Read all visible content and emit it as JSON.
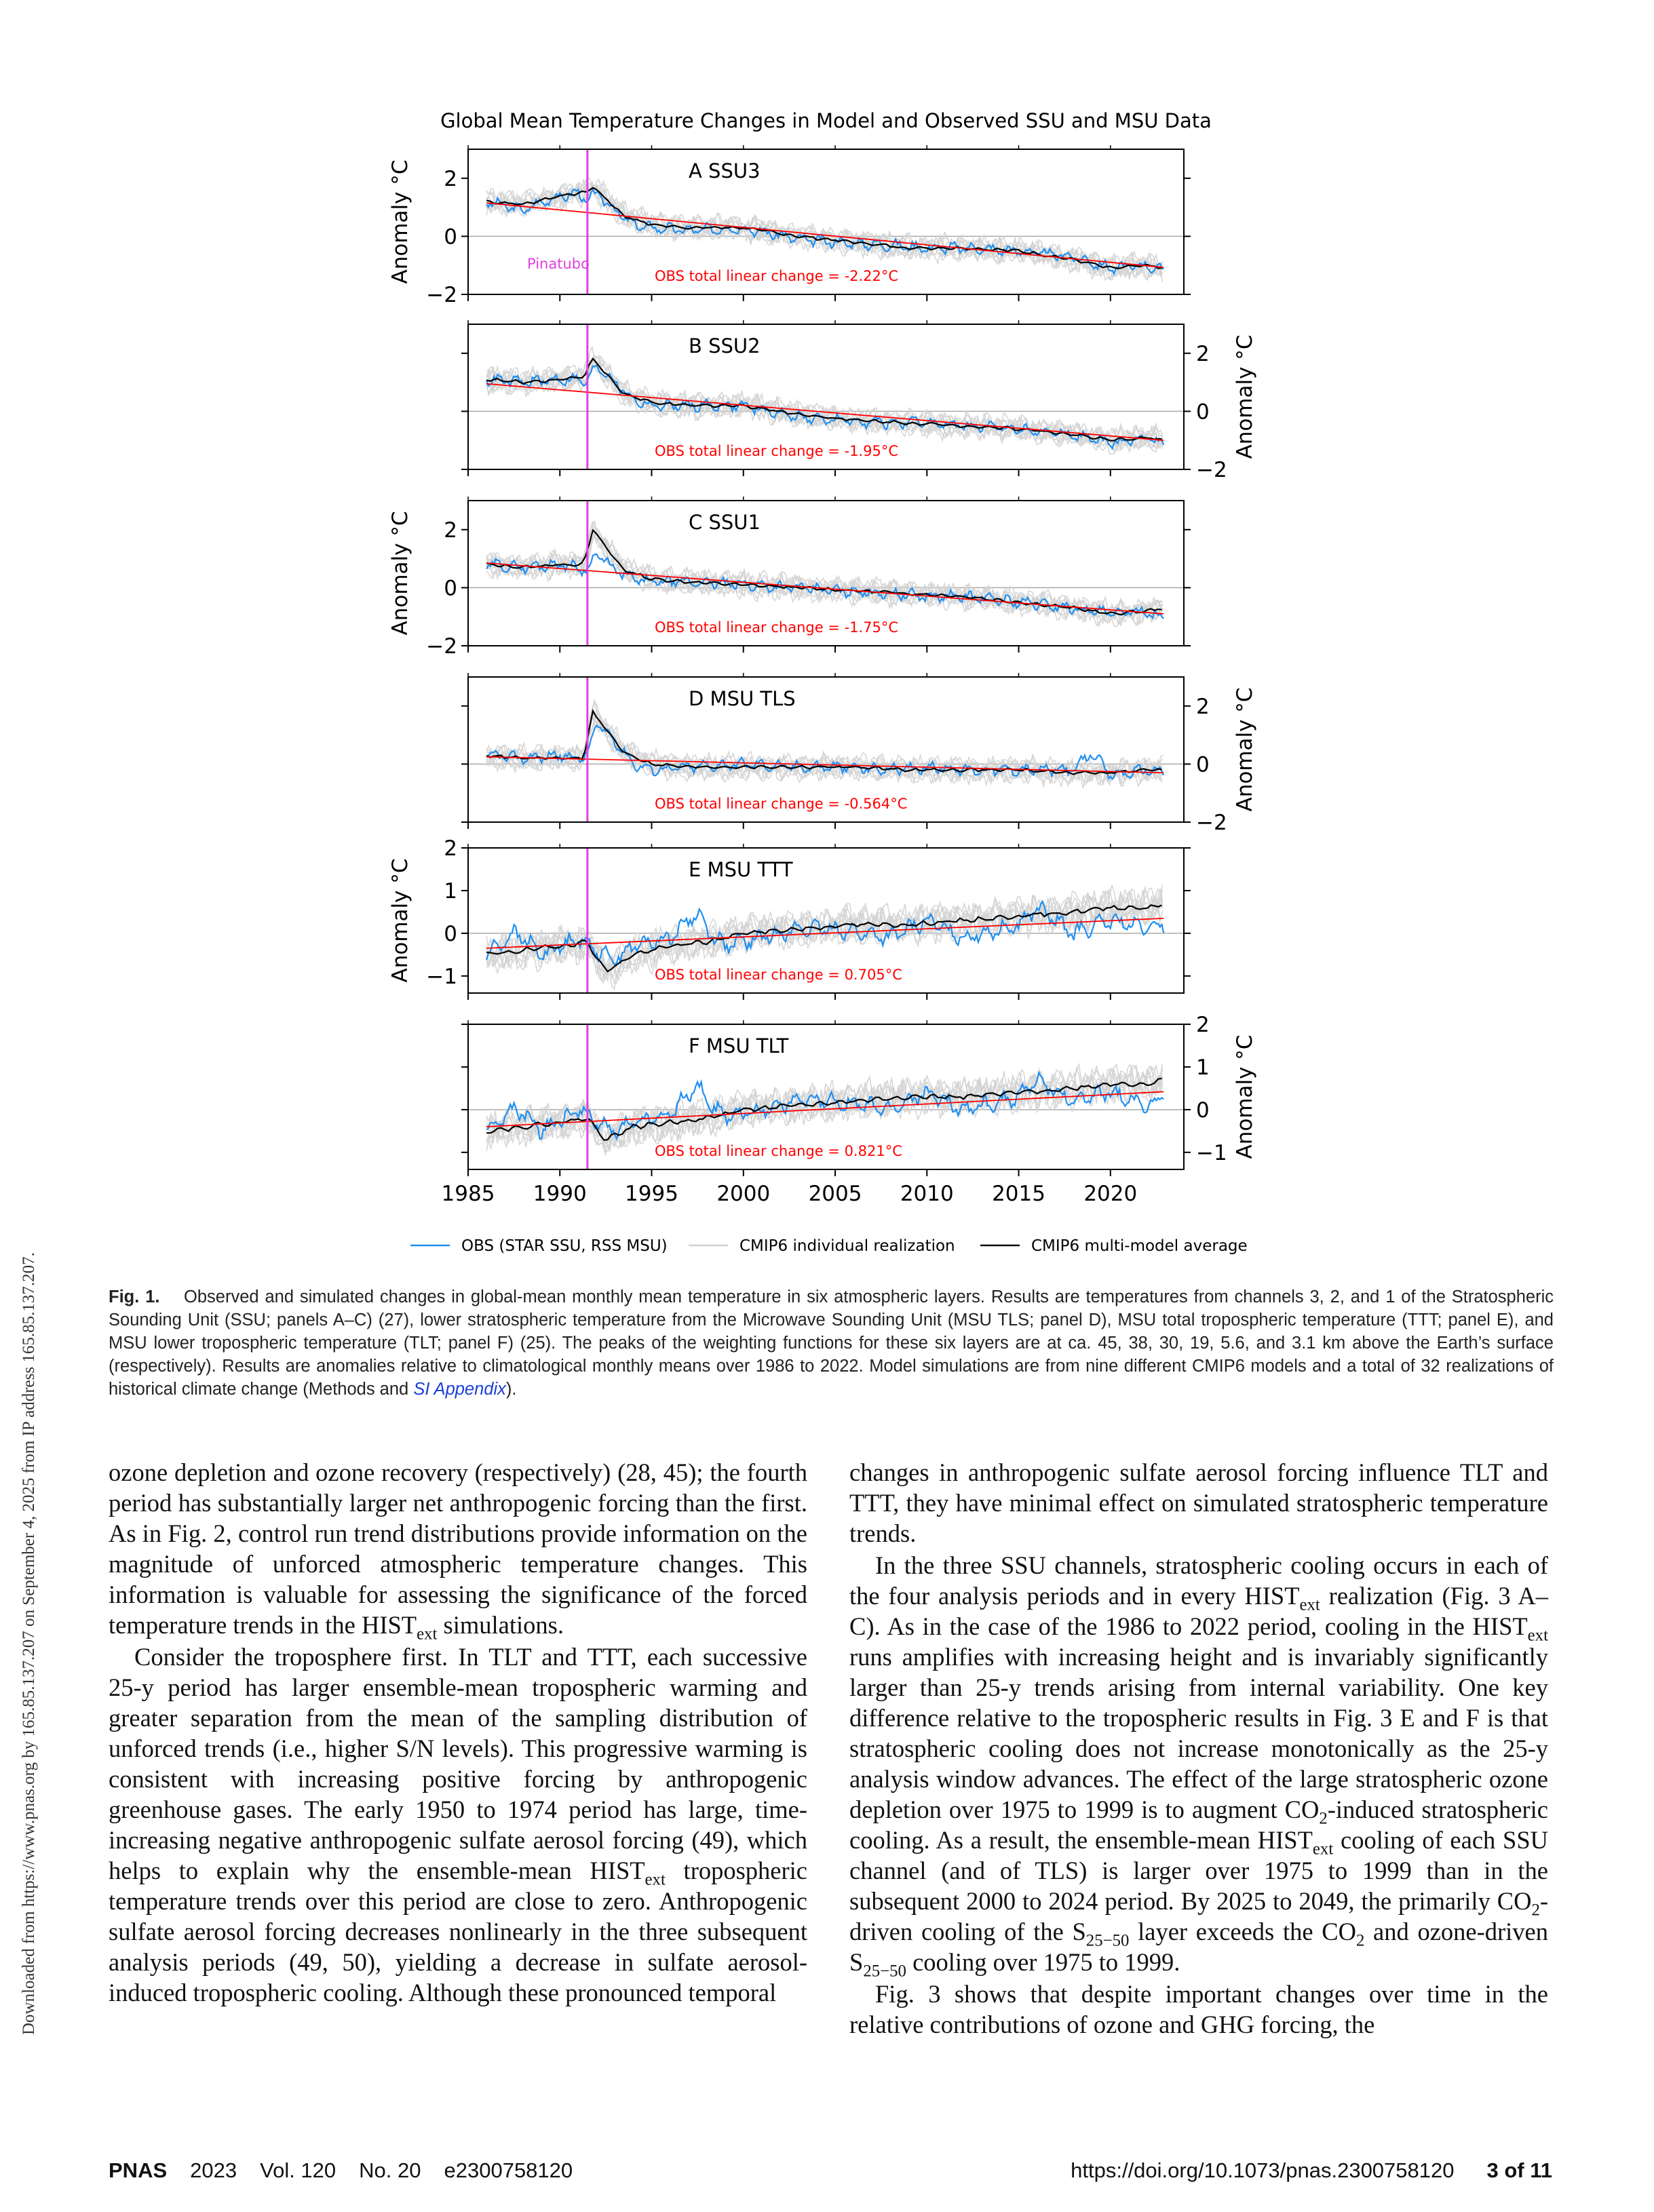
{
  "side_note": "Downloaded from https://www.pnas.org by 165.85.137.207 on September 4, 2025 from IP address 165.85.137.207.",
  "figure": {
    "title": "Global Mean Temperature Changes in Model and Observed SSU and MSU Data",
    "event_label": "Pinatubo",
    "event_year": 1991.5,
    "x_ticks": [
      1985,
      1990,
      1995,
      2000,
      2005,
      2010,
      2015,
      2020
    ],
    "xlim": [
      1985,
      2024
    ],
    "legend": [
      {
        "label": "OBS (STAR SSU, RSS MSU)",
        "color": "#1f8ff0"
      },
      {
        "label": "CMIP6 individual realization",
        "color": "#d0d0d0"
      },
      {
        "label": "CMIP6 multi-model average",
        "color": "#000000"
      }
    ],
    "colors": {
      "obs": "#1f8ff0",
      "models": "#d3d3d3",
      "mean": "#000000",
      "trend": "#ff0000",
      "event": "#e040e0",
      "zero": "#aaaaaa"
    }
  },
  "chart_data": [
    {
      "type": "line",
      "panel": "A",
      "title": "A   SSU3",
      "ylabel": "Anomaly °C",
      "yaxis_side": "left",
      "ylim": [
        -2,
        3
      ],
      "yticks": [
        -2,
        0,
        2
      ],
      "ytick_labels": [
        "−2",
        "0",
        "2"
      ],
      "annotation": "OBS total linear change = -2.22°C",
      "trend_line": {
        "x": [
          1986,
          2022.9
        ],
        "y": [
          1.15,
          -1.07
        ]
      },
      "series": [
        {
          "name": "OBS (STAR SSU, RSS MSU)",
          "x": [
            1986,
            1988,
            1989.5,
            1991,
            1991.5,
            1992,
            1993,
            1994,
            1995,
            1997,
            2000,
            2003,
            2005,
            2008,
            2010,
            2012,
            2015,
            2018,
            2020,
            2022,
            2022.9
          ],
          "y": [
            1.2,
            0.9,
            1.3,
            1.5,
            1.2,
            1.5,
            0.9,
            0.4,
            0.3,
            0.2,
            0.3,
            -0.1,
            -0.2,
            -0.3,
            -0.4,
            -0.4,
            -0.5,
            -0.7,
            -1.1,
            -1.0,
            -1.2
          ]
        },
        {
          "name": "CMIP6 multi-model average",
          "x": [
            1986,
            1988,
            1990,
            1991.3,
            1991.8,
            1992.5,
            1993.5,
            1995,
            1997,
            2000,
            2003,
            2006,
            2009,
            2012,
            2015,
            2018,
            2020,
            2022,
            2022.9
          ],
          "y": [
            1.2,
            1.1,
            1.4,
            1.5,
            1.7,
            1.3,
            0.7,
            0.4,
            0.3,
            0.3,
            0.0,
            -0.2,
            -0.4,
            -0.4,
            -0.5,
            -0.8,
            -1.1,
            -1.0,
            -1.1
          ]
        }
      ]
    },
    {
      "type": "line",
      "panel": "B",
      "title": "B   SSU2",
      "ylabel": "Anomaly °C",
      "yaxis_side": "right",
      "ylim": [
        -2,
        3
      ],
      "yticks": [
        -2,
        0,
        2
      ],
      "ytick_labels": [
        "−2",
        "0",
        "2"
      ],
      "annotation": "OBS total linear change = -1.95°C",
      "trend_line": {
        "x": [
          1986,
          2022.9
        ],
        "y": [
          0.95,
          -1.0
        ]
      },
      "series": [
        {
          "name": "OBS (STAR SSU, RSS MSU)",
          "x": [
            1986,
            1988,
            1990,
            1991,
            1991.5,
            1992,
            1993,
            1994,
            1995,
            1997,
            2000,
            2003,
            2005,
            2008,
            2010,
            2012,
            2015,
            2018,
            2020,
            2022,
            2022.9
          ],
          "y": [
            1.1,
            1.0,
            1.1,
            1.1,
            1.0,
            1.6,
            1.0,
            0.4,
            0.2,
            0.2,
            0.2,
            -0.2,
            -0.3,
            -0.4,
            -0.4,
            -0.5,
            -0.6,
            -0.8,
            -1.1,
            -0.9,
            -1.1
          ]
        },
        {
          "name": "CMIP6 multi-model average",
          "x": [
            1986,
            1988,
            1990,
            1991.3,
            1991.8,
            1992.5,
            1993.5,
            1995,
            1997,
            2000,
            2003,
            2006,
            2009,
            2012,
            2015,
            2018,
            2020,
            2022,
            2022.9
          ],
          "y": [
            1.1,
            1.0,
            1.1,
            1.2,
            1.8,
            1.3,
            0.6,
            0.3,
            0.2,
            0.2,
            -0.1,
            -0.3,
            -0.4,
            -0.5,
            -0.6,
            -0.8,
            -1.0,
            -0.9,
            -1.0
          ]
        }
      ]
    },
    {
      "type": "line",
      "panel": "C",
      "title": "C   SSU1",
      "ylabel": "Anomaly °C",
      "yaxis_side": "left",
      "ylim": [
        -2,
        3
      ],
      "yticks": [
        -2,
        0,
        2
      ],
      "ytick_labels": [
        "−2",
        "0",
        "2"
      ],
      "annotation": "OBS total linear change = -1.75°C",
      "trend_line": {
        "x": [
          1986,
          2022.9
        ],
        "y": [
          0.85,
          -0.9
        ]
      },
      "series": [
        {
          "name": "OBS (STAR SSU, RSS MSU)",
          "x": [
            1986,
            1988,
            1990,
            1991,
            1991.5,
            1992,
            1993,
            1994,
            1995,
            1997,
            2000,
            2003,
            2005,
            2008,
            2010,
            2012,
            2015,
            2018,
            2020,
            2022,
            2022.9
          ],
          "y": [
            0.8,
            0.7,
            0.8,
            0.7,
            0.6,
            1.2,
            0.6,
            0.3,
            0.2,
            0.2,
            0.1,
            0.0,
            -0.1,
            -0.2,
            -0.3,
            -0.3,
            -0.5,
            -0.7,
            -0.9,
            -0.8,
            -1.1
          ]
        },
        {
          "name": "CMIP6 multi-model average",
          "x": [
            1986,
            1988,
            1990,
            1991.3,
            1991.8,
            1992.5,
            1993.5,
            1995,
            1997,
            2000,
            2003,
            2006,
            2009,
            2012,
            2015,
            2018,
            2020,
            2022,
            2022.9
          ],
          "y": [
            0.8,
            0.7,
            0.8,
            0.8,
            2.0,
            1.4,
            0.6,
            0.3,
            0.2,
            0.1,
            0.0,
            -0.1,
            -0.2,
            -0.3,
            -0.5,
            -0.7,
            -0.9,
            -0.8,
            -0.7
          ]
        }
      ]
    },
    {
      "type": "line",
      "panel": "D",
      "title": "D   MSU TLS",
      "ylabel": "Anomaly °C",
      "yaxis_side": "right",
      "ylim": [
        -2,
        3
      ],
      "yticks": [
        -2,
        0,
        2
      ],
      "ytick_labels": [
        "−2",
        "0",
        "2"
      ],
      "annotation": "OBS total linear change = -0.564°C",
      "trend_line": {
        "x": [
          1986,
          2022.9
        ],
        "y": [
          0.25,
          -0.3
        ]
      },
      "series": [
        {
          "name": "OBS (STAR SSU, RSS MSU)",
          "x": [
            1986,
            1988,
            1990,
            1991,
            1991.5,
            1992,
            1993,
            1994,
            1995,
            1997,
            2000,
            2003,
            2005,
            2008,
            2010,
            2012,
            2015,
            2018,
            2019,
            2020,
            2022,
            2022.9
          ],
          "y": [
            0.3,
            0.2,
            0.3,
            0.2,
            0.3,
            1.4,
            0.8,
            0.0,
            -0.2,
            -0.1,
            0.0,
            -0.1,
            -0.1,
            -0.2,
            -0.1,
            -0.2,
            -0.2,
            -0.2,
            0.4,
            -0.4,
            -0.2,
            -0.3
          ]
        },
        {
          "name": "CMIP6 multi-model average",
          "x": [
            1986,
            1988,
            1990,
            1991.3,
            1991.8,
            1992.5,
            1993.5,
            1995,
            1997,
            2000,
            2003,
            2006,
            2009,
            2012,
            2015,
            2018,
            2020,
            2022,
            2022.9
          ],
          "y": [
            0.3,
            0.2,
            0.2,
            0.2,
            1.8,
            1.2,
            0.4,
            0.0,
            -0.1,
            -0.1,
            -0.1,
            -0.1,
            -0.2,
            -0.2,
            -0.2,
            -0.3,
            -0.3,
            -0.2,
            -0.2
          ]
        }
      ]
    },
    {
      "type": "line",
      "panel": "E",
      "title": "E   MSU TTT",
      "ylabel": "Anomaly °C",
      "yaxis_side": "left",
      "ylim": [
        -1.4,
        2
      ],
      "yticks": [
        -1,
        0,
        1,
        2
      ],
      "ytick_labels": [
        "−1",
        "0",
        "1",
        "2"
      ],
      "annotation": "OBS total linear change = 0.705°C",
      "trend_line": {
        "x": [
          1986,
          2022.9
        ],
        "y": [
          -0.35,
          0.35
        ]
      },
      "series": [
        {
          "name": "OBS (STAR SSU, RSS MSU)",
          "x": [
            1986,
            1987.5,
            1988,
            1989,
            1991,
            1992,
            1993,
            1994,
            1996,
            1997.5,
            1998,
            1999,
            2000,
            2003,
            2005,
            2008,
            2010,
            2012,
            2015,
            2016,
            2018,
            2020,
            2022,
            2022.9
          ],
          "y": [
            -0.5,
            0.0,
            -0.1,
            -0.5,
            -0.1,
            -0.4,
            -0.6,
            -0.3,
            -0.1,
            0.5,
            0.1,
            -0.3,
            -0.2,
            0.1,
            0.1,
            -0.1,
            0.3,
            -0.1,
            0.2,
            0.6,
            0.0,
            0.3,
            0.1,
            0.2
          ]
        },
        {
          "name": "CMIP6 multi-model average",
          "x": [
            1986,
            1988,
            1990,
            1991.5,
            1992.5,
            1994,
            1996,
            1998,
            2000,
            2003,
            2006,
            2009,
            2012,
            2015,
            2018,
            2020,
            2022,
            2022.9
          ],
          "y": [
            -0.5,
            -0.4,
            -0.3,
            -0.2,
            -0.9,
            -0.5,
            -0.3,
            -0.2,
            0.0,
            0.1,
            0.2,
            0.2,
            0.3,
            0.4,
            0.5,
            0.6,
            0.6,
            0.7
          ]
        }
      ]
    },
    {
      "type": "line",
      "panel": "F",
      "title": "F   MSU TLT",
      "ylabel": "Anomaly °C",
      "yaxis_side": "right",
      "ylim": [
        -1.4,
        2
      ],
      "yticks": [
        -1,
        0,
        1,
        2
      ],
      "ytick_labels": [
        "−1",
        "0",
        "1",
        "2"
      ],
      "annotation": "OBS total linear change = 0.821°C",
      "trend_line": {
        "x": [
          1986,
          2022.9
        ],
        "y": [
          -0.4,
          0.42
        ]
      },
      "series": [
        {
          "name": "OBS (STAR SSU, RSS MSU)",
          "x": [
            1986,
            1987.5,
            1988,
            1989,
            1991,
            1992,
            1993,
            1994,
            1996,
            1997.5,
            1998,
            1999,
            2000,
            2003,
            2005,
            2008,
            2010,
            2012,
            2015,
            2016,
            2018,
            2020,
            2022,
            2022.9
          ],
          "y": [
            -0.5,
            0.0,
            -0.1,
            -0.5,
            0.0,
            -0.3,
            -0.5,
            -0.3,
            -0.1,
            0.6,
            0.2,
            -0.2,
            -0.1,
            0.2,
            0.2,
            0.0,
            0.4,
            0.0,
            0.3,
            0.7,
            0.2,
            0.4,
            0.1,
            0.3
          ]
        },
        {
          "name": "CMIP6 multi-model average",
          "x": [
            1986,
            1988,
            1990,
            1991.5,
            1992.5,
            1994,
            1996,
            1998,
            2000,
            2003,
            2006,
            2009,
            2012,
            2015,
            2018,
            2020,
            2022,
            2022.9
          ],
          "y": [
            -0.5,
            -0.4,
            -0.3,
            -0.2,
            -0.7,
            -0.4,
            -0.3,
            -0.2,
            0.0,
            0.1,
            0.2,
            0.3,
            0.3,
            0.4,
            0.5,
            0.6,
            0.6,
            0.7
          ]
        }
      ]
    }
  ],
  "caption": {
    "label": "Fig. 1.",
    "text1": "Observed and simulated changes in global-mean monthly mean temperature in six atmospheric layers. Results are temperatures from channels 3, 2, and 1 of the Stratospheric Sounding Unit (SSU; panels A–C) (27), lower stratospheric temperature from the Microwave Sounding Unit (MSU TLS; panel D), MSU total tropospheric temperature (TTT; panel E), and MSU lower tropospheric temperature (TLT; panel F) (25). The peaks of the weighting functions for these six layers are at ca. 45, 38, 30, 19, 5.6, and 3.1 km above the Earth’s surface (respectively). Results are anomalies relative to climatological monthly means over 1986 to 2022. Model simulations are from nine different CMIP6 models and a total of 32 realizations of historical climate change (Methods and ",
    "si_link": "SI Appendix",
    "text2": ")."
  },
  "body": {
    "left_p1a": "ozone depletion and ozone recovery (respectively) (28, 45); the fourth period has substantially larger net anthropogenic forcing than the first. As in Fig. 2, control run trend distributions provide information on the magnitude of unforced atmospheric temperature changes. This information is valuable for assessing the significance of the forced temperature trends in the HIST",
    "sub_ext": "ext",
    "left_p1b": " simulations.",
    "left_p2a": "Consider the troposphere first. In TLT and TTT, each successive 25-y period has larger ensemble-mean tropospheric warming and greater separation from the mean of the sampling distribution of unforced trends (i.e., higher S/N levels). This progressive warming is consistent with increasing positive forcing by anthropogenic greenhouse gases. The early 1950 to 1974 period has large, time-increasing negative anthropogenic sulfate aerosol forcing (49), which helps to explain why the ensemble-mean HIST",
    "left_p2b": " tropospheric temperature trends over this period are close to zero. Anthropogenic sulfate aerosol forcing decreases nonlinearly in the three subsequent analysis periods (49, 50), yielding a decrease in sulfate aerosol-induced tropospheric cooling. Although these pronounced temporal",
    "right_p1": "changes in anthropogenic sulfate aerosol forcing influence TLT and TTT, they have minimal effect on simulated stratospheric temperature trends.",
    "right_p2a": "In the three SSU channels, stratospheric cooling occurs in each of the four analysis periods and in every HIST",
    "right_p2b": " realization (Fig. 3 A–C). As in the case of the 1986 to 2022 period, cooling in the HIST",
    "right_p2c": " runs amplifies with increasing height and is invariably significantly larger than 25-y trends arising from internal variability. One key difference relative to the tropospheric results in Fig. 3 E and F is that stratospheric cooling does not increase monotonically as the 25-y analysis window advances. The effect of the large stratospheric ozone depletion over 1975 to 1999 is to augment CO",
    "sub_2": "2",
    "right_p2d": "-induced stratospheric cooling. As a result, the ensemble-mean HIST",
    "right_p2e": " cooling of each SSU channel (and of TLS) is larger over 1975 to 1999 than in the subsequent 2000 to 2024 period. By 2025 to 2049, the primarily CO",
    "right_p2f": "-driven cooling of the S",
    "sub_2550": "25−50",
    "right_p2g": " layer exceeds the CO",
    "right_p2h": " and ozone-driven S",
    "right_p2i": " cooling over 1975 to 1999.",
    "right_p3": "Fig. 3 shows that despite important changes over time in the relative contributions of ozone and GHG forcing, the"
  },
  "footer": {
    "journal": "PNAS",
    "year": "2023",
    "volume": "Vol. 120",
    "number": "No. 20",
    "article": "e2300758120",
    "doi": "https://doi.org/10.1073/pnas.2300758120",
    "page": "3 of 11"
  }
}
